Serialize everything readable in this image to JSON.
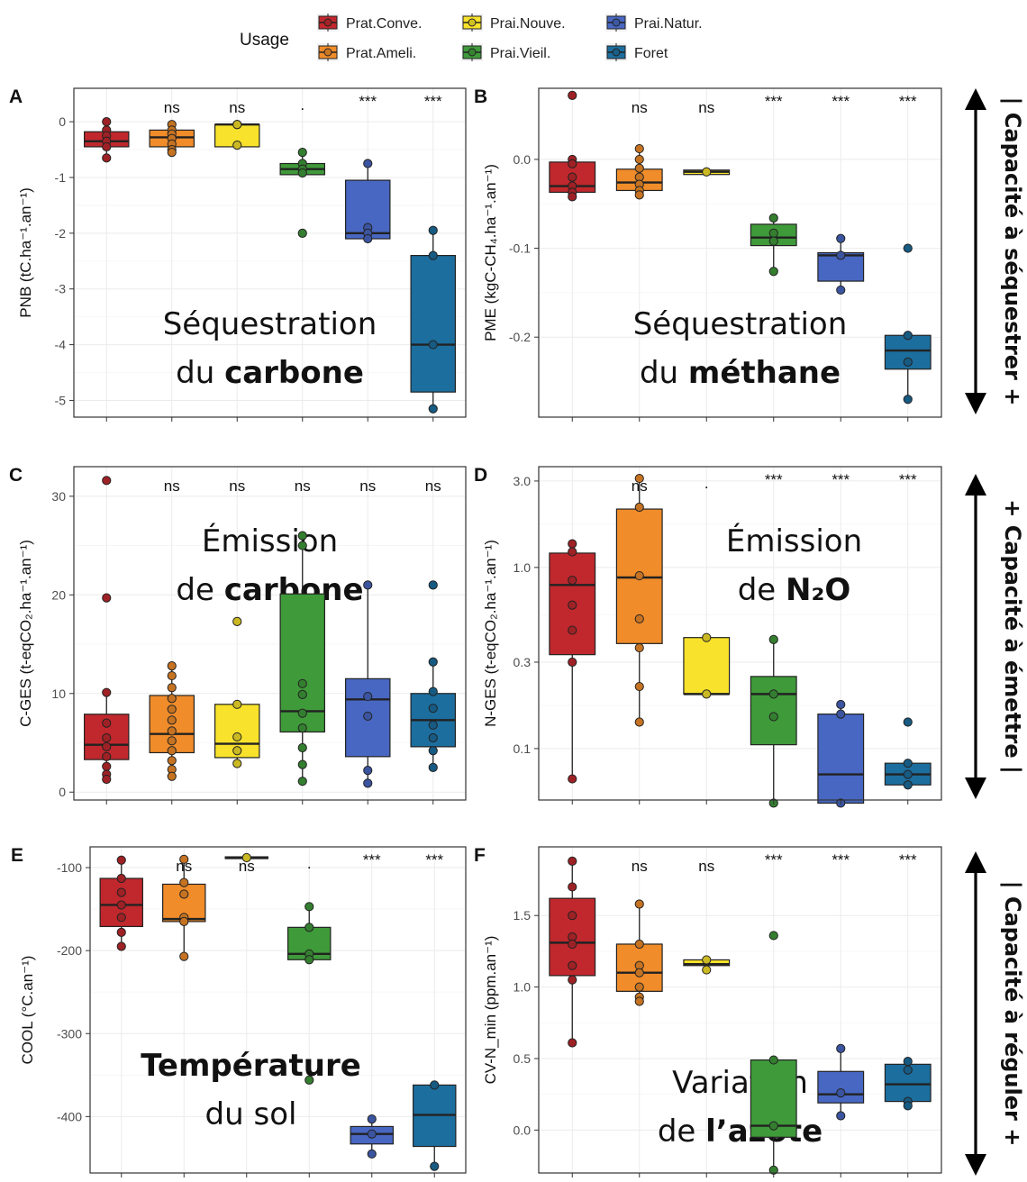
{
  "legend": {
    "title": "Usage",
    "items": [
      {
        "name": "Prat.Conve.",
        "color": "#C0282D"
      },
      {
        "name": "Prat.Ameli.",
        "color": "#F08C2A"
      },
      {
        "name": "Prai.Nouve.",
        "color": "#F8E22B"
      },
      {
        "name": "Prai.Vieil.",
        "color": "#3F9A3A"
      },
      {
        "name": "Prai.Natur.",
        "color": "#4867C2"
      },
      {
        "name": "Foret",
        "color": "#1C6E9E"
      }
    ]
  },
  "side_labels": [
    {
      "text": "Capacité à séquestrer +",
      "marker": "|"
    },
    {
      "text": "Capacité à émettre |",
      "marker": "+"
    },
    {
      "text": "Capacité à réguler +",
      "marker": "|"
    }
  ],
  "chart_data": [
    {
      "panel": "A",
      "type": "box",
      "ylabel": "PNB (tC.ha⁻¹.an⁻¹)",
      "ylim": [
        -5.3,
        0.6
      ],
      "scale": "linear",
      "yticks": [
        0,
        -1,
        -2,
        -3,
        -4,
        -5
      ],
      "ytick_labels": [
        "0",
        "-1",
        "-2",
        "-3",
        "-4",
        "-5"
      ],
      "sig": [
        "",
        "ns",
        "ns",
        ".",
        "***",
        "***"
      ],
      "annotation": [
        {
          "t": "Séquestration",
          "b": ""
        },
        {
          "t": "du ",
          "b": "carbone"
        }
      ],
      "boxes": [
        {
          "q1": -0.45,
          "med": -0.35,
          "q3": -0.18,
          "lo": -0.65,
          "hi": 0.0,
          "pts": [
            0.0,
            -0.15,
            -0.25,
            -0.35,
            -0.45,
            -0.65
          ]
        },
        {
          "q1": -0.45,
          "med": -0.28,
          "q3": -0.15,
          "lo": -0.55,
          "hi": -0.05,
          "pts": [
            -0.05,
            -0.15,
            -0.22,
            -0.3,
            -0.4,
            -0.5,
            -0.55
          ]
        },
        {
          "q1": -0.45,
          "med": -0.05,
          "q3": -0.05,
          "lo": -0.45,
          "hi": -0.05,
          "pts": [
            -0.05,
            -0.05,
            -0.42
          ]
        },
        {
          "q1": -0.95,
          "med": -0.85,
          "q3": -0.75,
          "lo": -1.0,
          "hi": -0.55,
          "pts": [
            -0.55,
            -0.75,
            -0.85,
            -0.92,
            -2.0
          ]
        },
        {
          "q1": -2.1,
          "med": -2.0,
          "q3": -1.05,
          "lo": -2.15,
          "hi": -0.75,
          "pts": [
            -0.75,
            -1.9,
            -2.0,
            -2.1
          ]
        },
        {
          "q1": -4.85,
          "med": -4.0,
          "q3": -2.4,
          "lo": -5.15,
          "hi": -1.95,
          "pts": [
            -1.95,
            -2.4,
            -4.0,
            -5.15
          ]
        }
      ]
    },
    {
      "panel": "B",
      "type": "box",
      "ylabel": "PME (kgC-CH₄.ha⁻¹.an⁻¹)",
      "ylim": [
        -0.29,
        0.08
      ],
      "scale": "linear",
      "yticks": [
        0.0,
        -0.1,
        -0.2
      ],
      "ytick_labels": [
        "0.0",
        "-0.1",
        "-0.2"
      ],
      "sig": [
        "",
        "ns",
        "ns",
        "***",
        "***",
        "***"
      ],
      "annotation": [
        {
          "t": "Séquestration",
          "b": ""
        },
        {
          "t": "du ",
          "b": "méthane"
        }
      ],
      "boxes": [
        {
          "q1": -0.037,
          "med": -0.03,
          "q3": -0.003,
          "lo": -0.042,
          "hi": 0.0,
          "pts": [
            0.072,
            0.0,
            -0.005,
            -0.02,
            -0.03,
            -0.037,
            -0.042
          ]
        },
        {
          "q1": -0.035,
          "med": -0.026,
          "q3": -0.011,
          "lo": -0.042,
          "hi": 0.012,
          "pts": [
            0.012,
            0.0,
            -0.01,
            -0.02,
            -0.028,
            -0.035,
            -0.04
          ]
        },
        {
          "q1": -0.017,
          "med": -0.014,
          "q3": -0.012,
          "lo": -0.017,
          "hi": -0.012,
          "pts": [
            -0.014
          ]
        },
        {
          "q1": -0.097,
          "med": -0.088,
          "q3": -0.073,
          "lo": -0.126,
          "hi": -0.066,
          "pts": [
            -0.066,
            -0.083,
            -0.092,
            -0.126
          ]
        },
        {
          "q1": -0.137,
          "med": -0.108,
          "q3": -0.105,
          "lo": -0.147,
          "hi": -0.089,
          "pts": [
            -0.089,
            -0.108,
            -0.147
          ]
        },
        {
          "q1": -0.236,
          "med": -0.215,
          "q3": -0.198,
          "lo": -0.27,
          "hi": -0.198,
          "pts": [
            -0.1,
            -0.198,
            -0.228,
            -0.27
          ]
        }
      ]
    },
    {
      "panel": "C",
      "type": "box",
      "ylabel": "C-GES (t-eqCO₂.ha⁻¹.an⁻¹)",
      "ylim": [
        -0.8,
        33
      ],
      "scale": "linear",
      "yticks": [
        0,
        10,
        20,
        30
      ],
      "ytick_labels": [
        "0",
        "10",
        "20",
        "30"
      ],
      "sig": [
        "",
        "ns",
        "ns",
        "ns",
        "ns",
        "ns"
      ],
      "annotation": [
        {
          "t": "Émission",
          "b": ""
        },
        {
          "t": "de ",
          "b": "carbone"
        }
      ],
      "boxes": [
        {
          "q1": 3.3,
          "med": 4.8,
          "q3": 7.9,
          "lo": 1.3,
          "hi": 10.1,
          "pts": [
            31.6,
            19.7,
            10.1,
            7.0,
            5.5,
            4.6,
            3.6,
            2.6,
            1.8,
            1.3
          ]
        },
        {
          "q1": 4.0,
          "med": 5.9,
          "q3": 9.8,
          "lo": 1.6,
          "hi": 12.8,
          "pts": [
            12.8,
            11.8,
            10.6,
            9.5,
            8.4,
            7.3,
            6.2,
            5.2,
            4.2,
            3.2,
            2.3,
            1.6
          ]
        },
        {
          "q1": 3.5,
          "med": 4.9,
          "q3": 8.9,
          "lo": 2.9,
          "hi": 8.9,
          "pts": [
            17.3,
            8.9,
            5.6,
            4.2,
            2.9
          ]
        },
        {
          "q1": 6.1,
          "med": 8.2,
          "q3": 20.1,
          "lo": 1.1,
          "hi": 26.0,
          "pts": [
            26.0,
            25.0,
            11.0,
            9.9,
            8.0,
            6.5,
            4.5,
            2.8,
            1.1
          ]
        },
        {
          "q1": 3.6,
          "med": 9.4,
          "q3": 11.5,
          "lo": 0.9,
          "hi": 21.0,
          "pts": [
            21.0,
            9.7,
            7.7,
            2.2,
            0.9
          ]
        },
        {
          "q1": 4.6,
          "med": 7.3,
          "q3": 10.0,
          "lo": 2.5,
          "hi": 13.2,
          "pts": [
            21.0,
            13.2,
            10.2,
            8.5,
            6.8,
            5.5,
            4.2,
            2.5
          ]
        }
      ]
    },
    {
      "panel": "D",
      "type": "box",
      "ylabel": "N-GES (t-eqCO₂.ha⁻¹.an⁻¹)",
      "ylim": [
        0.052,
        3.6
      ],
      "scale": "log",
      "yticks": [
        3.0,
        1.0,
        0.3,
        0.1
      ],
      "ytick_labels": [
        "3.0",
        "1.0",
        "0.3",
        "0.1"
      ],
      "sig": [
        "",
        "ns",
        ".",
        "***",
        "***",
        "***"
      ],
      "annotation": [
        {
          "t": "Émission",
          "b": ""
        },
        {
          "t": "de ",
          "b": "N₂O"
        }
      ],
      "boxes": [
        {
          "q1": 0.33,
          "med": 0.8,
          "q3": 1.2,
          "lo": 0.068,
          "hi": 1.35,
          "pts": [
            1.35,
            1.22,
            0.85,
            0.62,
            0.45,
            0.3,
            0.068
          ]
        },
        {
          "q1": 0.38,
          "med": 0.88,
          "q3": 2.1,
          "lo": 0.14,
          "hi": 3.1,
          "pts": [
            3.1,
            2.15,
            0.9,
            0.52,
            0.36,
            0.22,
            0.14
          ]
        },
        {
          "q1": 0.2,
          "med": 0.2,
          "q3": 0.41,
          "lo": 0.2,
          "hi": 0.41,
          "pts": [
            0.41,
            0.2
          ]
        },
        {
          "q1": 0.105,
          "med": 0.2,
          "q3": 0.25,
          "lo": 0.05,
          "hi": 0.4,
          "pts": [
            0.4,
            0.2,
            0.15,
            0.05
          ]
        },
        {
          "q1": 0.05,
          "med": 0.072,
          "q3": 0.155,
          "lo": 0.05,
          "hi": 0.175,
          "pts": [
            0.175,
            0.155,
            0.05
          ]
        },
        {
          "q1": 0.063,
          "med": 0.072,
          "q3": 0.083,
          "lo": 0.063,
          "hi": 0.083,
          "pts": [
            0.14,
            0.083,
            0.072,
            0.063
          ]
        }
      ]
    },
    {
      "panel": "E",
      "type": "box",
      "ylabel": "COOL (°C.an⁻¹)",
      "ylim": [
        -468,
        -75
      ],
      "scale": "linear",
      "yticks": [
        -100,
        -200,
        -300,
        -400
      ],
      "ytick_labels": [
        "-100",
        "-200",
        "-300",
        "-400"
      ],
      "sig": [
        "",
        "ns",
        "ns",
        ".",
        "***",
        "***"
      ],
      "annotation": [
        {
          "t": "",
          "b": "Température"
        },
        {
          "t": "du sol",
          "b": ""
        }
      ],
      "boxes": [
        {
          "q1": -171,
          "med": -145,
          "q3": -113,
          "lo": -195,
          "hi": -91,
          "pts": [
            -91,
            -113,
            -130,
            -145,
            -160,
            -178,
            -195
          ]
        },
        {
          "q1": -165,
          "med": -162,
          "q3": -120,
          "lo": -207,
          "hi": -90,
          "pts": [
            -90,
            -118,
            -132,
            -160,
            -165,
            -207
          ]
        },
        {
          "q1": -89,
          "med": -88,
          "q3": -87,
          "lo": -89,
          "hi": -87,
          "pts": [
            -88
          ]
        },
        {
          "q1": -211,
          "med": -204,
          "q3": -172,
          "lo": -214,
          "hi": -147,
          "pts": [
            -147,
            -172,
            -204,
            -211,
            -356
          ]
        },
        {
          "q1": -433,
          "med": -421,
          "q3": -412,
          "lo": -445,
          "hi": -403,
          "pts": [
            -403,
            -421,
            -445
          ]
        },
        {
          "q1": -436,
          "med": -398,
          "q3": -362,
          "lo": -460,
          "hi": -362,
          "pts": [
            -362,
            -460
          ]
        }
      ]
    },
    {
      "panel": "F",
      "type": "box",
      "ylabel": "CV-N_min (ppm.an⁻¹)",
      "ylim": [
        -0.3,
        1.98
      ],
      "scale": "linear",
      "yticks": [
        1.5,
        1.0,
        0.5,
        0.0
      ],
      "ytick_labels": [
        "1.5",
        "1.0",
        "0.5",
        "0.0"
      ],
      "sig": [
        "",
        "ns",
        "ns",
        "***",
        "***",
        "***"
      ],
      "annotation": [
        {
          "t": "Variation",
          "b": ""
        },
        {
          "t": "de ",
          "b": "l’azote"
        }
      ],
      "boxes": [
        {
          "q1": 1.08,
          "med": 1.31,
          "q3": 1.62,
          "lo": 0.61,
          "hi": 1.88,
          "pts": [
            1.88,
            1.7,
            1.5,
            1.35,
            1.3,
            1.15,
            1.05,
            0.61
          ]
        },
        {
          "q1": 0.97,
          "med": 1.1,
          "q3": 1.3,
          "lo": 0.9,
          "hi": 1.58,
          "pts": [
            1.58,
            1.3,
            1.15,
            1.1,
            1.0,
            0.93,
            0.9
          ]
        },
        {
          "q1": 1.15,
          "med": 1.16,
          "q3": 1.19,
          "lo": 1.12,
          "hi": 1.19,
          "pts": [
            1.19,
            1.12
          ]
        },
        {
          "q1": -0.05,
          "med": 0.03,
          "q3": 0.49,
          "lo": -0.28,
          "hi": 0.49,
          "pts": [
            1.36,
            0.49,
            0.03,
            -0.28
          ]
        },
        {
          "q1": 0.19,
          "med": 0.25,
          "q3": 0.41,
          "lo": 0.1,
          "hi": 0.57,
          "pts": [
            0.57,
            0.26,
            0.1
          ]
        },
        {
          "q1": 0.2,
          "med": 0.32,
          "q3": 0.46,
          "lo": 0.17,
          "hi": 0.48,
          "pts": [
            0.48,
            0.42,
            0.2,
            0.17
          ]
        }
      ]
    }
  ]
}
